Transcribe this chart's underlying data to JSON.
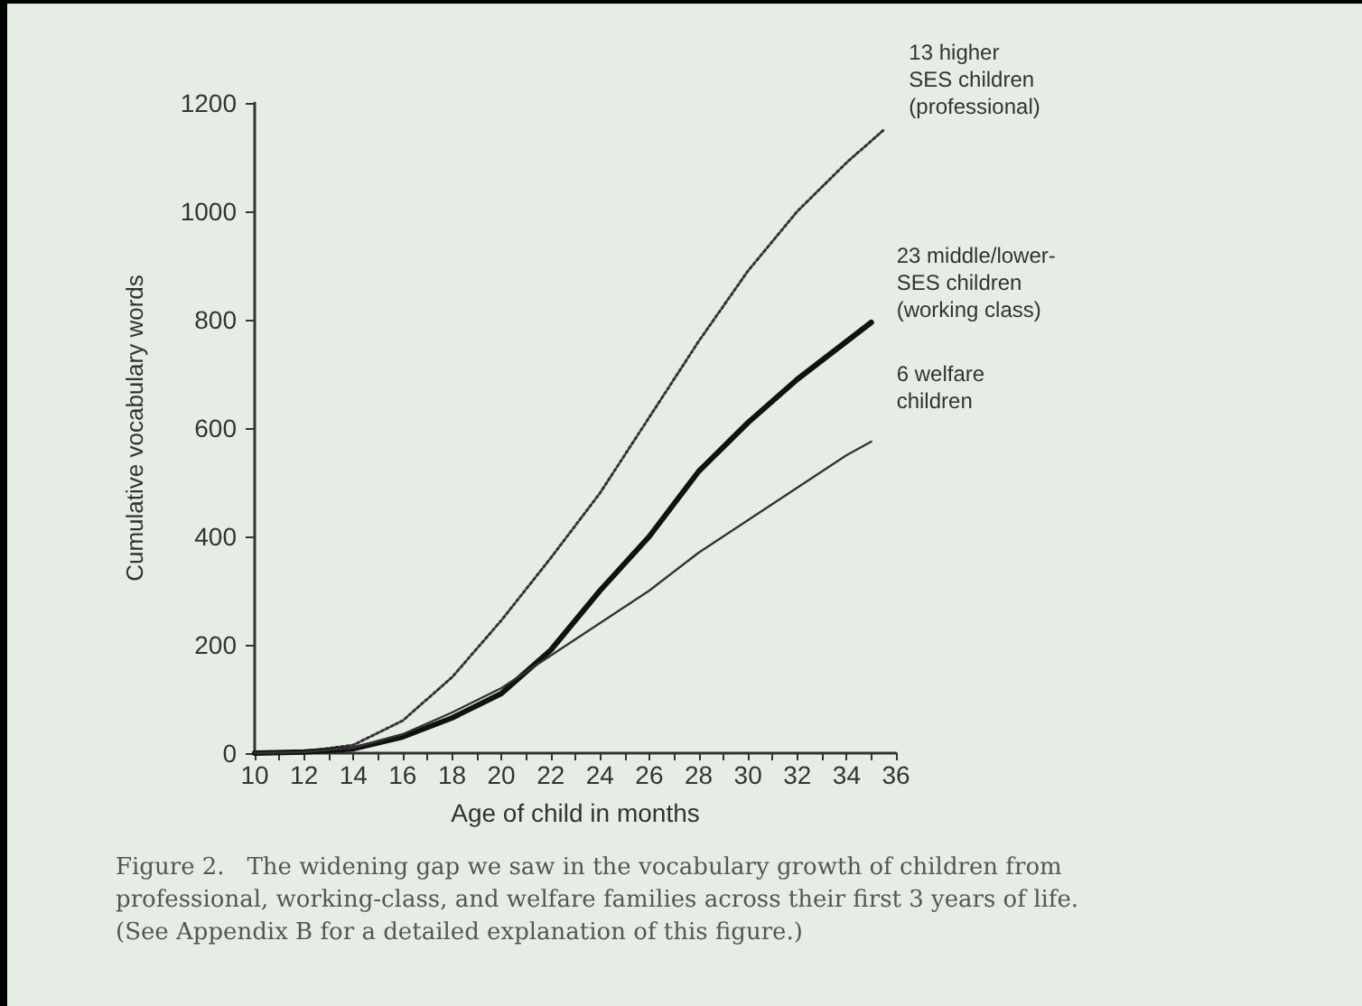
{
  "chart_data": {
    "type": "line",
    "xlabel": "Age of child in months",
    "ylabel": "Cumulative vocabulary words",
    "xlim": [
      10,
      36
    ],
    "xticks": [
      10,
      12,
      14,
      16,
      18,
      20,
      22,
      24,
      26,
      28,
      30,
      32,
      34,
      36
    ],
    "ylim": [
      0,
      1200
    ],
    "yticks": [
      0,
      200,
      400,
      600,
      800,
      1000,
      1200
    ],
    "grid": false,
    "legend": false,
    "marker": "none",
    "x": [
      10,
      12,
      14,
      16,
      18,
      20,
      22,
      24,
      26,
      28,
      30,
      32,
      34,
      35.5
    ],
    "series": [
      {
        "name": "13 higher\nSES children\n(professional)",
        "color": "#333333",
        "line_style": "dotted",
        "values": [
          0,
          3,
          15,
          60,
          140,
          245,
          360,
          480,
          620,
          760,
          890,
          1000,
          1090,
          1150
        ]
      },
      {
        "name": "23 middle/lower-\nSES children\n(working class)",
        "color": "#111111",
        "line_style": "solid",
        "x": [
          10,
          12,
          14,
          16,
          18,
          20,
          22,
          24,
          26,
          28,
          30,
          32,
          34,
          35
        ],
        "values": [
          0,
          2,
          8,
          30,
          65,
          110,
          190,
          300,
          400,
          520,
          610,
          690,
          760,
          795
        ]
      },
      {
        "name": "6 welfare\nchildren",
        "color": "#333333",
        "line_style": "solid",
        "x": [
          10,
          12,
          14,
          16,
          18,
          20,
          22,
          24,
          26,
          28,
          30,
          32,
          34,
          35
        ],
        "values": [
          0,
          2,
          10,
          35,
          75,
          120,
          180,
          240,
          300,
          370,
          430,
          490,
          550,
          575
        ]
      }
    ],
    "annotations": [
      "Figure 2.   The widening gap we saw in the vocabulary growth of children from professional, working-class, and welfare families across their first 3 years of life. (See Appendix B for a detailed explanation of this figure.)"
    ]
  }
}
